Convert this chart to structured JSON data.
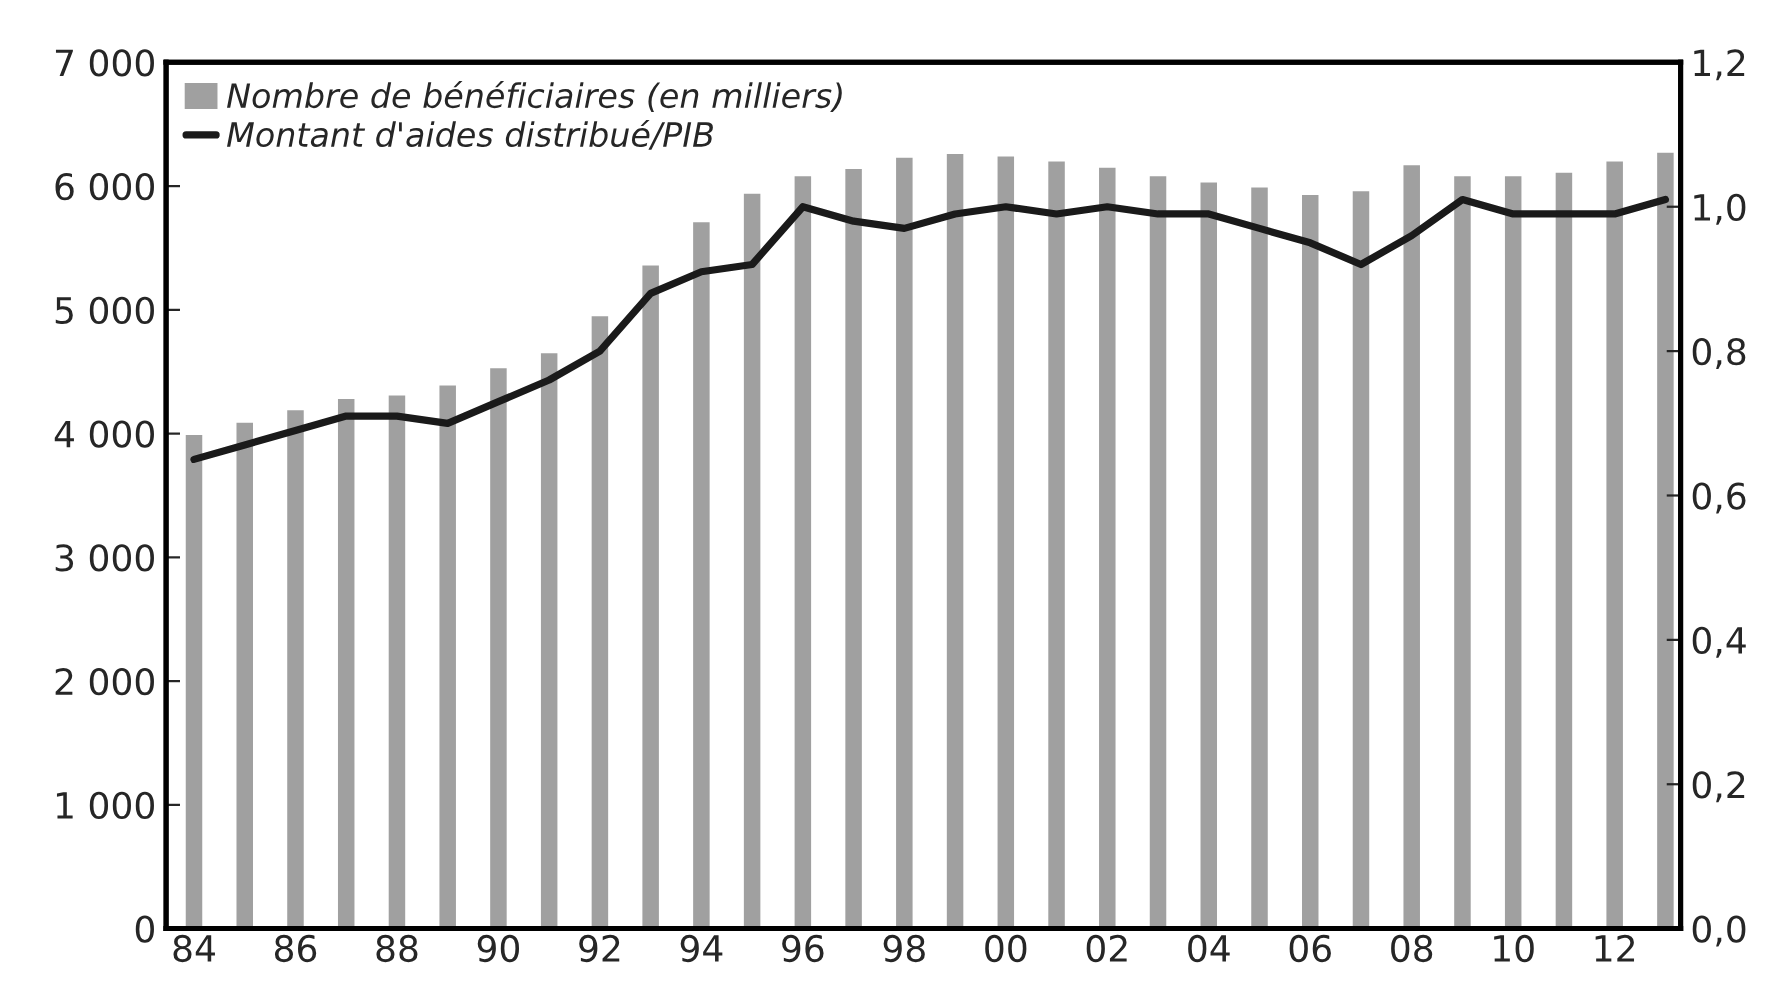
{
  "chart_data": {
    "type": "bar",
    "categories": [
      "84",
      null,
      "86",
      null,
      "88",
      null,
      "90",
      null,
      "92",
      null,
      "94",
      null,
      "96",
      null,
      "98",
      null,
      "00",
      null,
      "02",
      null,
      "04",
      null,
      "06",
      null,
      "08",
      null,
      "10",
      null,
      "12",
      null
    ],
    "series": [
      {
        "name": "Nombre de bénéficiaires (en milliers)",
        "color": "#a0a0a0",
        "values": [
          4000,
          4100,
          4200,
          4290,
          4320,
          4400,
          4540,
          4660,
          4960,
          5370,
          5720,
          5950,
          6090,
          6150,
          6240,
          6270,
          6250,
          6210,
          6160,
          6090,
          6040,
          6000,
          5940,
          5970,
          6180,
          6090,
          6090,
          6120,
          6210,
          6280
        ]
      },
      {
        "name": "Montant d'aides distribué/PIB",
        "type": "line",
        "axis": "y2",
        "color": "#1a1a1a",
        "values": [
          0.65,
          0.67,
          0.69,
          0.71,
          0.71,
          0.7,
          0.73,
          0.76,
          0.8,
          0.88,
          0.91,
          0.92,
          1.0,
          0.98,
          0.97,
          0.99,
          1.0,
          0.99,
          1.0,
          0.99,
          0.99,
          0.97,
          0.95,
          0.92,
          0.96,
          1.01,
          0.99,
          0.99,
          0.99,
          1.01
        ]
      }
    ],
    "ylim": [
      0,
      7000
    ],
    "yticks": [
      {
        "value": 0,
        "label": "0"
      },
      {
        "value": 1000,
        "label": "1 000"
      },
      {
        "value": 2000,
        "label": "2 000"
      },
      {
        "value": 3000,
        "label": "3 000"
      },
      {
        "value": 4000,
        "label": "4 000"
      },
      {
        "value": 5000,
        "label": "5 000"
      },
      {
        "value": 6000,
        "label": "6 000"
      },
      {
        "value": 7000,
        "label": "7 000"
      }
    ],
    "y2lim": [
      0,
      1.2
    ],
    "y2ticks": [
      {
        "value": 0,
        "label": "0,0"
      },
      {
        "value": 0.2,
        "label": "0,2"
      },
      {
        "value": 0.4,
        "label": "0,4"
      },
      {
        "value": 0.6,
        "label": "0,6"
      },
      {
        "value": 0.8,
        "label": "0,8"
      },
      {
        "value": 1.0,
        "label": "1,0"
      },
      {
        "value": 1.2,
        "label": "1,2"
      }
    ],
    "legend": "top left",
    "grid": false,
    "line_style": "solid",
    "marker": "none"
  }
}
